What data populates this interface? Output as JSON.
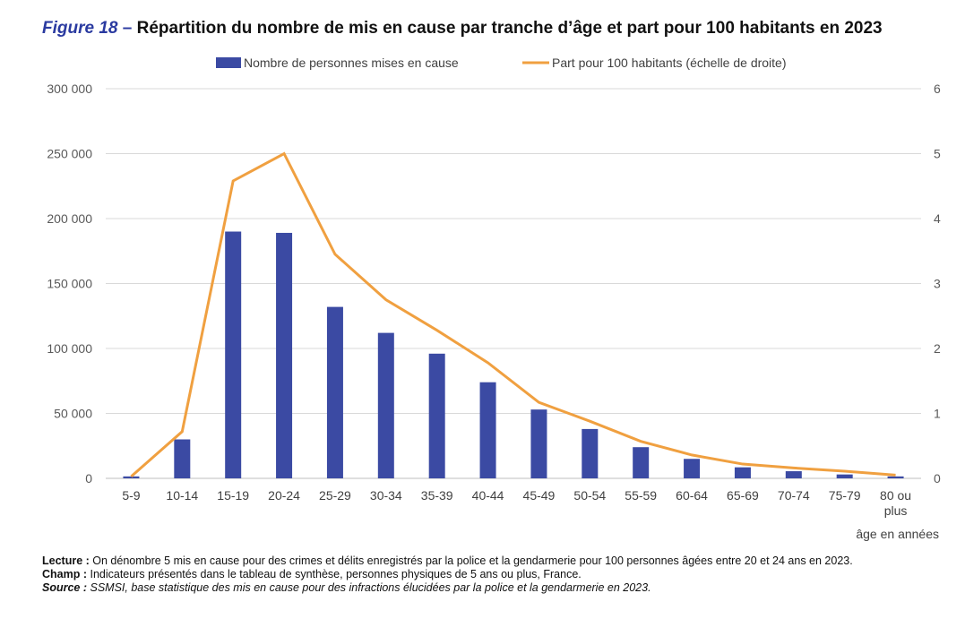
{
  "figure": {
    "number": "Figure 18",
    "dash": " – ",
    "title": "Répartition du nombre de mis en cause par tranche d’âge et part pour 100 habitants en 2023"
  },
  "chart_data": {
    "type": "bar",
    "categories": [
      "5-9",
      "10-14",
      "15-19",
      "20-24",
      "25-29",
      "30-34",
      "35-39",
      "40-44",
      "45-49",
      "50-54",
      "55-59",
      "60-64",
      "65-69",
      "70-74",
      "75-79",
      "80 ou plus"
    ],
    "category_lines": [
      [
        "5-9"
      ],
      [
        "10-14"
      ],
      [
        "15-19"
      ],
      [
        "20-24"
      ],
      [
        "25-29"
      ],
      [
        "30-34"
      ],
      [
        "35-39"
      ],
      [
        "40-44"
      ],
      [
        "45-49"
      ],
      [
        "50-54"
      ],
      [
        "55-59"
      ],
      [
        "60-64"
      ],
      [
        "65-69"
      ],
      [
        "70-74"
      ],
      [
        "75-79"
      ],
      [
        "80 ou",
        "plus"
      ]
    ],
    "series": [
      {
        "name": "Nombre de personnes mises en cause",
        "type": "bar",
        "axis": "left",
        "color": "#3b4aa3",
        "values": [
          1500,
          30000,
          190000,
          189000,
          132000,
          112000,
          96000,
          74000,
          53000,
          38000,
          24000,
          15000,
          8500,
          5500,
          3000,
          1500
        ]
      },
      {
        "name": "Part pour 100 habitants (échelle de droite)",
        "type": "line",
        "axis": "right",
        "color": "#f0a040",
        "values": [
          0.03,
          0.72,
          4.58,
          5.0,
          3.45,
          2.75,
          2.28,
          1.78,
          1.17,
          0.88,
          0.57,
          0.36,
          0.22,
          0.16,
          0.11,
          0.05
        ]
      }
    ],
    "y_left": {
      "min": 0,
      "max": 300000,
      "ticks": [
        0,
        50000,
        100000,
        150000,
        200000,
        250000,
        300000
      ],
      "tick_labels": [
        "0",
        "50 000",
        "100 000",
        "150 000",
        "200 000",
        "250 000",
        "300 000"
      ]
    },
    "y_right": {
      "min": 0,
      "max": 6,
      "ticks": [
        0,
        1,
        2,
        3,
        4,
        5,
        6
      ],
      "tick_labels": [
        "0",
        "1",
        "2",
        "3",
        "4",
        "5",
        "6"
      ]
    },
    "xlabel": "âge en années",
    "grid": true,
    "legend_position": "top-center"
  },
  "notes": {
    "lecture_label": "Lecture :",
    "lecture_text": " On dénombre 5 mis en cause pour des crimes et délits enregistrés par la police et la gendarmerie pour 100 personnes âgées entre 20 et 24 ans en 2023.",
    "champ_label": "Champ :",
    "champ_text": " Indicateurs présentés dans le tableau de synthèse, personnes physiques de 5 ans ou plus, France.",
    "source_label": "Source :",
    "source_text": " SSMSI, base statistique des mis en cause pour des infractions élucidées par la police et la gendarmerie  en 2023."
  }
}
